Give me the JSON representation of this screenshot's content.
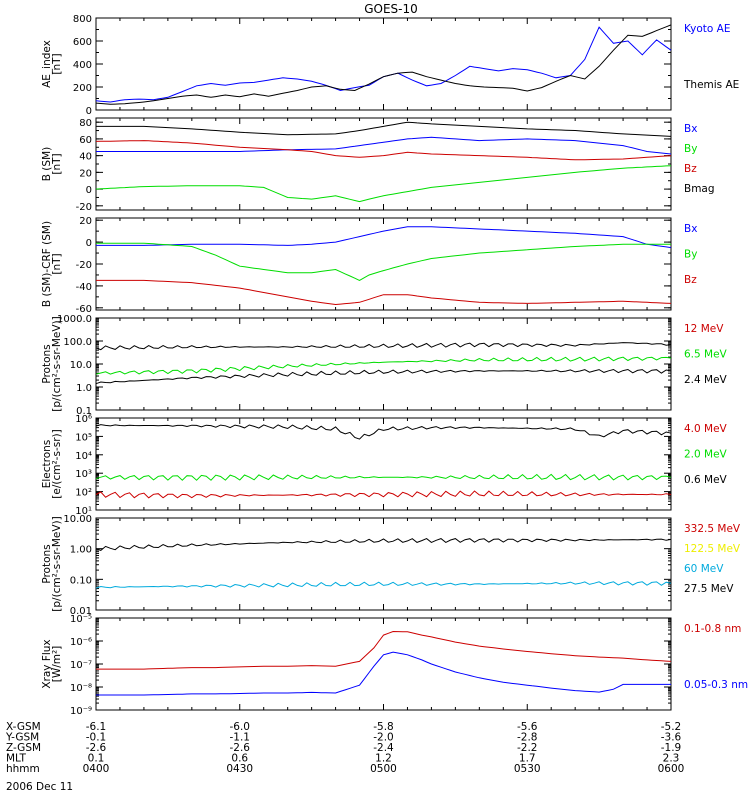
{
  "title": "GOES-10",
  "date": "2006 Dec 11",
  "colors": {
    "black": "#000000",
    "blue": "#0000ff",
    "red": "#cc0000",
    "green": "#00dd00",
    "yellow": "#eeee00",
    "cyan": "#00aadd"
  },
  "time": {
    "start": "04:00",
    "end": "06:00",
    "ticks": [
      "0400",
      "0430",
      "0500",
      "0530",
      "0600"
    ]
  },
  "ephemeris": {
    "rows": [
      {
        "label": "X-GSM",
        "values": [
          "-6.1",
          "-6.0",
          "-5.8",
          "-5.6",
          "-5.2"
        ]
      },
      {
        "label": "Y-GSM",
        "values": [
          "-0.1",
          "-1.1",
          "-2.0",
          "-2.8",
          "-3.6"
        ]
      },
      {
        "label": "Z-GSM",
        "values": [
          "-2.6",
          "-2.6",
          "-2.4",
          "-2.2",
          "-1.9"
        ]
      },
      {
        "label": "MLT",
        "values": [
          "0.1",
          "0.6",
          "1.2",
          "1.7",
          "2.3"
        ]
      },
      {
        "label": "hhmm",
        "values": [
          "0400",
          "0430",
          "0500",
          "0530",
          "0600"
        ]
      }
    ]
  },
  "chart_data": [
    {
      "type": "line",
      "ylabel": [
        "AE_index",
        "[nT]"
      ],
      "scale": "linear",
      "ylim": [
        0,
        800
      ],
      "yticks": [
        0,
        200,
        400,
        600,
        800
      ],
      "ytick_labels": [
        "0",
        "200",
        "400",
        "600",
        "800"
      ],
      "series": [
        {
          "name": "Kyoto AE",
          "color": "blue",
          "legend_pos": "top",
          "x": [
            0,
            3,
            6,
            9,
            12,
            15,
            18,
            21,
            24,
            27,
            30,
            33,
            36,
            39,
            42,
            45,
            48,
            51,
            54,
            57,
            60,
            63,
            66,
            69,
            72,
            75,
            78,
            81,
            84,
            87,
            90,
            93,
            96,
            99,
            102,
            105,
            108,
            111,
            114,
            117,
            120
          ],
          "y": [
            80,
            70,
            90,
            95,
            90,
            110,
            160,
            210,
            230,
            215,
            235,
            240,
            260,
            280,
            270,
            250,
            215,
            170,
            195,
            215,
            290,
            320,
            260,
            210,
            230,
            300,
            380,
            360,
            340,
            360,
            350,
            320,
            280,
            300,
            440,
            720,
            580,
            600,
            480,
            610,
            520
          ]
        },
        {
          "name": "Themis AE",
          "color": "black",
          "legend_pos": "middle",
          "x": [
            0,
            3,
            6,
            9,
            12,
            15,
            18,
            21,
            24,
            27,
            30,
            33,
            36,
            39,
            42,
            45,
            48,
            51,
            54,
            57,
            60,
            63,
            66,
            69,
            72,
            75,
            78,
            81,
            84,
            87,
            90,
            93,
            96,
            99,
            102,
            105,
            108,
            111,
            114,
            117,
            120
          ],
          "y": [
            60,
            50,
            55,
            65,
            80,
            100,
            120,
            130,
            110,
            130,
            115,
            140,
            120,
            145,
            170,
            200,
            210,
            180,
            170,
            225,
            290,
            320,
            330,
            290,
            260,
            230,
            210,
            200,
            195,
            190,
            165,
            195,
            250,
            300,
            270,
            380,
            520,
            650,
            640,
            690,
            740
          ]
        }
      ]
    },
    {
      "type": "line",
      "ylabel": [
        "B (SM)",
        "[nT]"
      ],
      "scale": "linear",
      "ylim": [
        -25,
        85
      ],
      "yticks": [
        -20,
        0,
        20,
        40,
        60,
        80
      ],
      "ytick_labels": [
        "-20",
        "0",
        "20",
        "40",
        "60",
        "80"
      ],
      "series": [
        {
          "name": "Bx",
          "color": "blue",
          "x": [
            0,
            10,
            20,
            30,
            40,
            50,
            55,
            60,
            65,
            70,
            80,
            90,
            100,
            110,
            115,
            120
          ],
          "y": [
            45,
            45,
            45,
            45,
            47,
            48,
            52,
            56,
            60,
            62,
            58,
            60,
            58,
            52,
            45,
            42
          ]
        },
        {
          "name": "By",
          "color": "green",
          "x": [
            0,
            10,
            20,
            30,
            35,
            40,
            45,
            50,
            55,
            57,
            60,
            65,
            70,
            80,
            90,
            100,
            110,
            120
          ],
          "y": [
            0,
            3,
            4,
            4,
            2,
            -10,
            -12,
            -8,
            -15,
            -12,
            -8,
            -3,
            2,
            8,
            14,
            20,
            25,
            28
          ]
        },
        {
          "name": "Bz",
          "color": "red",
          "x": [
            0,
            10,
            20,
            30,
            40,
            45,
            50,
            55,
            60,
            65,
            70,
            80,
            90,
            100,
            110,
            120
          ],
          "y": [
            57,
            58,
            55,
            50,
            47,
            45,
            40,
            38,
            40,
            44,
            42,
            40,
            38,
            35,
            36,
            40
          ]
        },
        {
          "name": "Bmag",
          "color": "black",
          "x": [
            0,
            10,
            20,
            30,
            40,
            50,
            55,
            60,
            65,
            70,
            80,
            90,
            100,
            110,
            120
          ],
          "y": [
            75,
            75,
            72,
            68,
            65,
            66,
            70,
            75,
            80,
            78,
            75,
            72,
            70,
            66,
            63
          ]
        }
      ]
    },
    {
      "type": "line",
      "ylabel": [
        "B (SM)-CRF (SM)",
        "[nT]"
      ],
      "scale": "linear",
      "ylim": [
        -62,
        22
      ],
      "yticks": [
        -60,
        -40,
        -20,
        0,
        20
      ],
      "ytick_labels": [
        "-60",
        "-40",
        "-20",
        "0",
        "20"
      ],
      "series": [
        {
          "name": "Bx",
          "color": "blue",
          "x": [
            0,
            10,
            20,
            30,
            40,
            45,
            50,
            55,
            60,
            65,
            70,
            80,
            90,
            100,
            110,
            115,
            120
          ],
          "y": [
            -3,
            -3,
            -2,
            -2,
            -3,
            -2,
            0,
            5,
            10,
            14,
            14,
            12,
            10,
            8,
            5,
            -2,
            -5
          ]
        },
        {
          "name": "By",
          "color": "green",
          "x": [
            0,
            10,
            20,
            25,
            30,
            40,
            45,
            50,
            55,
            57,
            60,
            65,
            70,
            80,
            90,
            100,
            110,
            120
          ],
          "y": [
            -1,
            -1,
            -4,
            -12,
            -22,
            -28,
            -28,
            -25,
            -35,
            -30,
            -26,
            -20,
            -15,
            -10,
            -7,
            -4,
            -2,
            -2
          ]
        },
        {
          "name": "Bz",
          "color": "red",
          "x": [
            0,
            10,
            20,
            30,
            40,
            45,
            50,
            55,
            60,
            65,
            70,
            80,
            90,
            100,
            110,
            120
          ],
          "y": [
            -35,
            -35,
            -37,
            -42,
            -50,
            -54,
            -57,
            -55,
            -48,
            -48,
            -51,
            -55,
            -56,
            -55,
            -54,
            -56
          ]
        }
      ]
    },
    {
      "type": "line",
      "ylabel": [
        "Protons",
        "[p/(cm²-s-sr-MeV)]"
      ],
      "scale": "log",
      "ylim": [
        0.1,
        1000
      ],
      "yticks": [
        0.1,
        1,
        10,
        100,
        1000
      ],
      "ytick_labels": [
        "0.1",
        "1.0",
        "10.0",
        "100.0",
        "1000.0"
      ],
      "series": [
        {
          "name": "12 MeV",
          "color": "red",
          "x": [],
          "y": []
        },
        {
          "name": "6.5 MeV",
          "color": "green",
          "x": [
            0,
            20,
            40,
            60,
            80,
            100,
            120
          ],
          "y": [
            4,
            5,
            8,
            12,
            15,
            16,
            18
          ]
        },
        {
          "name": "2.4 MeV",
          "color": "black",
          "x": [
            0,
            20,
            40,
            60,
            80,
            100,
            120
          ],
          "y": [
            1.5,
            2.5,
            3.5,
            4.5,
            5,
            5,
            5
          ]
        },
        {
          "name": "",
          "color": "black",
          "x": [
            0,
            20,
            40,
            60,
            80,
            100,
            110,
            120
          ],
          "y": [
            50,
            55,
            55,
            60,
            70,
            65,
            85,
            70
          ]
        }
      ]
    },
    {
      "type": "line",
      "ylabel": [
        "Electrons",
        "[e/(cm²-s-sr)]"
      ],
      "scale": "log",
      "ylim": [
        10,
        1000000
      ],
      "yticks": [
        10,
        100,
        1000,
        10000,
        100000,
        1000000
      ],
      "ytick_labels": [
        "10¹",
        "10²",
        "10³",
        "10⁴",
        "10⁵",
        "10⁶"
      ],
      "series": [
        {
          "name": "4.0 MeV",
          "color": "red",
          "x": [
            0,
            20,
            40,
            60,
            80,
            100,
            120
          ],
          "y": [
            70,
            60,
            65,
            70,
            75,
            70,
            70
          ]
        },
        {
          "name": "2.0 MeV",
          "color": "green",
          "x": [
            0,
            20,
            40,
            60,
            80,
            100,
            120
          ],
          "y": [
            600,
            600,
            600,
            600,
            600,
            600,
            600
          ]
        },
        {
          "name": "0.6 MeV",
          "color": "black",
          "x": [
            0,
            20,
            40,
            50,
            55,
            60,
            70,
            80,
            100,
            105,
            110,
            120
          ],
          "y": [
            400000,
            380000,
            330000,
            250000,
            80000,
            250000,
            300000,
            300000,
            250000,
            100000,
            200000,
            150000
          ]
        }
      ]
    },
    {
      "type": "line",
      "ylabel": [
        "Protons",
        "[p/(cm²-s-sr-MeV)]"
      ],
      "scale": "log",
      "ylim": [
        0.01,
        10
      ],
      "yticks": [
        0.01,
        0.1,
        1,
        10
      ],
      "ytick_labels": [
        "0.01",
        "0.10",
        "1.00",
        "10.00"
      ],
      "series": [
        {
          "name": "332.5 MeV",
          "color": "red",
          "x": [],
          "y": []
        },
        {
          "name": "122.5 MeV",
          "color": "yellow",
          "x": [],
          "y": []
        },
        {
          "name": "60 MeV",
          "color": "cyan",
          "x": [
            0,
            20,
            40,
            60,
            80,
            100,
            120
          ],
          "y": [
            0.055,
            0.06,
            0.065,
            0.07,
            0.07,
            0.075,
            0.075
          ]
        },
        {
          "name": "27.5 MeV",
          "color": "black",
          "x": [
            0,
            20,
            40,
            60,
            80,
            100,
            120
          ],
          "y": [
            1.0,
            1.3,
            1.6,
            1.8,
            1.9,
            1.9,
            2.0
          ]
        }
      ]
    },
    {
      "type": "line",
      "ylabel": [
        "Xray Flux",
        "[W/m²]"
      ],
      "scale": "log",
      "ylim": [
        1e-09,
        1e-05
      ],
      "yticks": [
        1e-09,
        1e-08,
        1e-07,
        1e-06,
        1e-05
      ],
      "ytick_labels": [
        "10⁻⁹",
        "10⁻⁸",
        "10⁻⁷",
        "10⁻⁶",
        "10⁻⁵"
      ],
      "series": [
        {
          "name": "0.1-0.8 nm",
          "color": "red",
          "x": [
            0,
            5,
            10,
            15,
            20,
            25,
            30,
            35,
            40,
            45,
            50,
            55,
            58,
            60,
            62,
            65,
            68,
            70,
            75,
            80,
            85,
            90,
            95,
            100,
            105,
            110,
            115,
            120
          ],
          "y": [
            6e-08,
            6e-08,
            6e-08,
            6.5e-08,
            7e-08,
            7e-08,
            7.5e-08,
            8e-08,
            8e-08,
            8.5e-08,
            8e-08,
            1.3e-07,
            5e-07,
            1.8e-06,
            2.6e-06,
            2.5e-06,
            1.8e-06,
            1.5e-06,
            9e-07,
            6e-07,
            4.5e-07,
            3.5e-07,
            2.8e-07,
            2.3e-07,
            2e-07,
            1.8e-07,
            1.5e-07,
            1.3e-07
          ]
        },
        {
          "name": "0.05-0.3 nm",
          "color": "blue",
          "x": [
            0,
            5,
            10,
            15,
            20,
            25,
            30,
            35,
            40,
            45,
            50,
            55,
            58,
            60,
            62,
            65,
            68,
            70,
            75,
            80,
            85,
            90,
            95,
            100,
            105,
            108,
            110,
            115,
            120
          ],
          "y": [
            4.5e-09,
            4.5e-09,
            4.5e-09,
            4.7e-09,
            5e-09,
            5e-09,
            5.2e-09,
            5.5e-09,
            5.5e-09,
            5.8e-09,
            5.5e-09,
            1.2e-08,
            8e-08,
            2.5e-07,
            3.3e-07,
            2.5e-07,
            1.5e-07,
            1e-07,
            4.5e-08,
            2.5e-08,
            1.6e-08,
            1.2e-08,
            9e-09,
            7e-09,
            6e-09,
            8e-09,
            1.3e-08,
            1.3e-08,
            1.3e-08
          ]
        }
      ]
    }
  ]
}
